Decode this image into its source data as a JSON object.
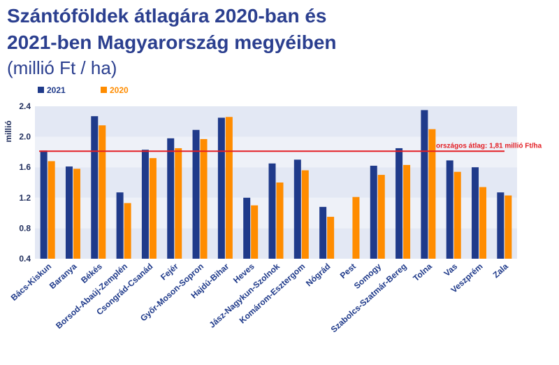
{
  "header": {
    "title_line1": "Szántóföldek átlagára 2020-ban és",
    "title_line2": "2021-ben Magyarország megyéiben",
    "subtitle": "(millió Ft / ha)"
  },
  "chart_data": {
    "type": "bar",
    "ylabel": "millió",
    "ylim": [
      0.4,
      2.4
    ],
    "yticks": [
      "0.4",
      "0.8",
      "1.2",
      "1.6",
      "2.0",
      "2.4"
    ],
    "grid": "horizontal-bands",
    "legend_position": "top-left",
    "categories": [
      "Bács-Kiskun",
      "Baranya",
      "Békés",
      "Borsod-Abaúj-Zemplén",
      "Csongrád-Csanád",
      "Fejér",
      "Győr-Moson-Sopron",
      "Hajdú-Bihar",
      "Heves",
      "Jász-Nagykun-Szolnok",
      "Komárom-Esztergom",
      "Nógrád",
      "Pest",
      "Somogy",
      "Szabolcs-Szatmár-Bereg",
      "Tolna",
      "Vas",
      "Veszprém",
      "Zala"
    ],
    "series": [
      {
        "name": "2021",
        "color": "#1f3a8a",
        "values": [
          1.82,
          1.61,
          2.27,
          1.27,
          1.83,
          1.98,
          2.09,
          2.25,
          1.2,
          1.65,
          1.7,
          1.08,
          null,
          1.62,
          1.85,
          2.35,
          1.69,
          1.6,
          1.27
        ]
      },
      {
        "name": "2020",
        "color": "#ff8c00",
        "values": [
          1.68,
          1.58,
          2.15,
          1.13,
          1.72,
          1.85,
          1.97,
          2.26,
          1.1,
          1.4,
          1.56,
          0.95,
          1.21,
          1.5,
          1.63,
          2.1,
          1.54,
          1.34,
          1.23
        ]
      }
    ],
    "reference_line": {
      "value": 1.81,
      "label": "országos átlag: 1,81 millió Ft/ha",
      "color": "#e31e24"
    }
  }
}
